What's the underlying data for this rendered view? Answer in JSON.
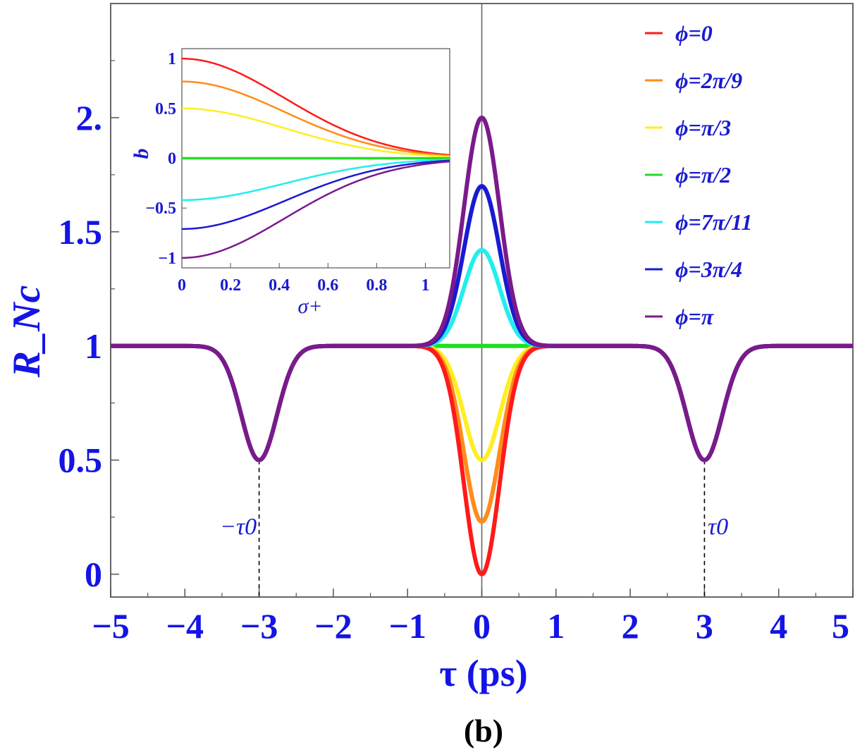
{
  "chart_data": [
    {
      "type": "line",
      "xlabel": "τ (ps)",
      "ylabel": "R_Nc",
      "xlim": [
        -5,
        5
      ],
      "ylim": [
        -0.1,
        2.5
      ],
      "x_ticks": [
        "−5",
        "−4",
        "−3",
        "−2",
        "−1",
        "0",
        "1",
        "2",
        "3",
        "4",
        "5"
      ],
      "y_ticks": [
        "0",
        "0.5",
        "1",
        "1.5",
        "2."
      ],
      "panel_label": "(b)",
      "annotations": [
        "−τ0",
        "τ0"
      ],
      "annotation_x": [
        -3,
        3
      ],
      "side_dip": {
        "x": [
          -3,
          3
        ],
        "y": 0.5,
        "width": 0.24
      },
      "center_width": 0.24,
      "grid": false,
      "legend_position": "top-right",
      "series": [
        {
          "name": "ϕ=0",
          "color": "#ff1a1a",
          "center_value": 0.0
        },
        {
          "name": "ϕ=2π/9",
          "color": "#ff8c1a",
          "center_value": 0.23
        },
        {
          "name": "ϕ=π/3",
          "color": "#ffee22",
          "center_value": 0.5
        },
        {
          "name": "ϕ=π/2",
          "color": "#22dd22",
          "center_value": 1.0
        },
        {
          "name": "ϕ=7π/11",
          "color": "#22eeee",
          "center_value": 1.42
        },
        {
          "name": "ϕ=3π/4",
          "color": "#1a1ad0",
          "center_value": 1.7
        },
        {
          "name": "ϕ=π",
          "color": "#7a1a8c",
          "center_value": 2.0
        }
      ]
    },
    {
      "type": "line",
      "xlabel": "σ+",
      "ylabel": "b",
      "xlim": [
        0,
        1.1
      ],
      "ylim": [
        -1.1,
        1.1
      ],
      "x_ticks": [
        "0",
        "0.2",
        "0.4",
        "0.6",
        "0.8",
        "1"
      ],
      "y_ticks": [
        "1",
        "0.5",
        "0",
        "−0.5",
        "−1"
      ],
      "series": [
        {
          "name": "ϕ=0",
          "color": "#ff1a1a",
          "b0": 1.0
        },
        {
          "name": "ϕ=2π/9",
          "color": "#ff8c1a",
          "b0": 0.77
        },
        {
          "name": "ϕ=π/3",
          "color": "#ffee22",
          "b0": 0.5
        },
        {
          "name": "ϕ=π/2",
          "color": "#22dd22",
          "b0": 0.0
        },
        {
          "name": "ϕ=7π/11",
          "color": "#22eeee",
          "b0": -0.42
        },
        {
          "name": "ϕ=3π/4",
          "color": "#1a1ad0",
          "b0": -0.71
        },
        {
          "name": "ϕ=π",
          "color": "#7a1a8c",
          "b0": -1.0
        }
      ],
      "decay_width": 0.42
    }
  ]
}
